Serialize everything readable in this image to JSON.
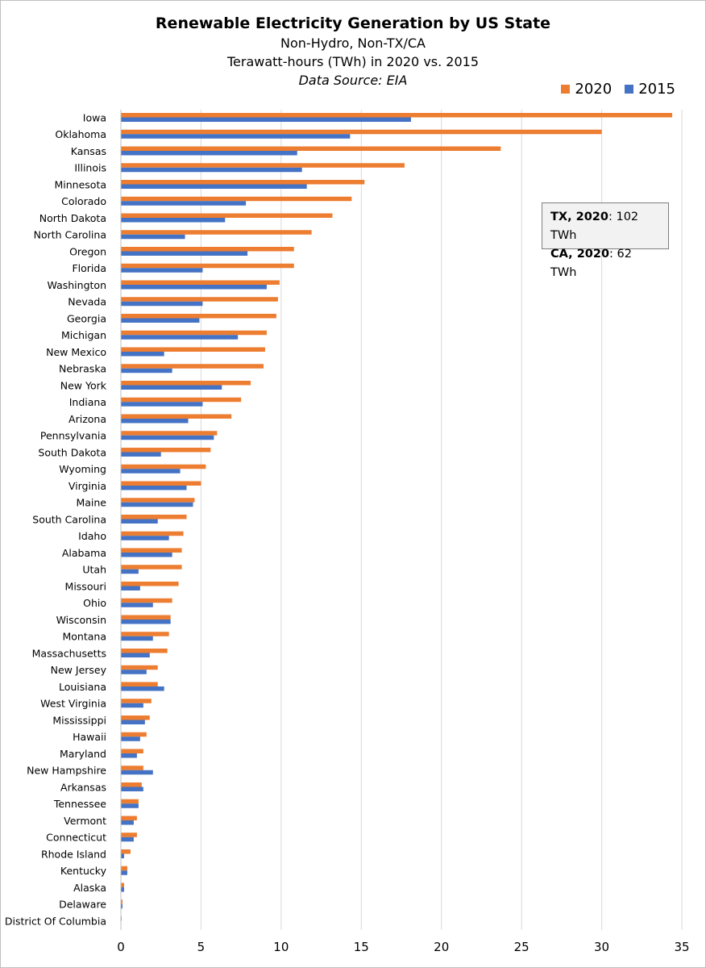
{
  "chart_data": {
    "type": "bar",
    "orientation": "horizontal",
    "title": "Renewable Electricity Generation by US State",
    "subtitle_lines": [
      "Non-Hydro, Non-TX/CA",
      "Terawatt-hours (TWh) in 2020 vs. 2015"
    ],
    "source": "Data Source: EIA",
    "xlim": [
      0,
      35
    ],
    "x_ticks": [
      0,
      5,
      10,
      15,
      20,
      25,
      30,
      35
    ],
    "grid": true,
    "legend_position": "top-right",
    "series_colors": {
      "2020": "#ED7D31",
      "2015": "#4472C4"
    },
    "categories": [
      "Iowa",
      "Oklahoma",
      "Kansas",
      "Illinois",
      "Minnesota",
      "Colorado",
      "North Dakota",
      "North Carolina",
      "Oregon",
      "Florida",
      "Washington",
      "Nevada",
      "Georgia",
      "Michigan",
      "New Mexico",
      "Nebraska",
      "New York",
      "Indiana",
      "Arizona",
      "Pennsylvania",
      "South Dakota",
      "Wyoming",
      "Virginia",
      "Maine",
      "South Carolina",
      "Idaho",
      "Alabama",
      "Utah",
      "Missouri",
      "Ohio",
      "Wisconsin",
      "Montana",
      "Massachusetts",
      "New Jersey",
      "Louisiana",
      "West Virginia",
      "Mississippi",
      "Hawaii",
      "Maryland",
      "New Hampshire",
      "Arkansas",
      "Tennessee",
      "Vermont",
      "Connecticut",
      "Rhode Island",
      "Kentucky",
      "Alaska",
      "Delaware",
      "District Of Columbia"
    ],
    "series": [
      {
        "name": "2020",
        "values": [
          34.4,
          30.0,
          23.7,
          17.7,
          15.2,
          14.4,
          13.2,
          11.9,
          10.8,
          10.8,
          9.9,
          9.8,
          9.7,
          9.1,
          9.0,
          8.9,
          8.1,
          7.5,
          6.9,
          6.0,
          5.6,
          5.3,
          5.0,
          4.6,
          4.1,
          3.9,
          3.8,
          3.8,
          3.6,
          3.2,
          3.1,
          3.0,
          2.9,
          2.3,
          2.3,
          1.9,
          1.8,
          1.6,
          1.4,
          1.4,
          1.3,
          1.1,
          1.0,
          1.0,
          0.6,
          0.4,
          0.2,
          0.1,
          0.05
        ]
      },
      {
        "name": "2015",
        "values": [
          18.1,
          14.3,
          11.0,
          11.3,
          11.6,
          7.8,
          6.5,
          4.0,
          7.9,
          5.1,
          9.1,
          5.1,
          4.9,
          7.3,
          2.7,
          3.2,
          6.3,
          5.1,
          4.2,
          5.8,
          2.5,
          3.7,
          4.1,
          4.5,
          2.3,
          3.0,
          3.2,
          1.1,
          1.2,
          2.0,
          3.1,
          2.0,
          1.8,
          1.6,
          2.7,
          1.4,
          1.5,
          1.2,
          1.0,
          2.0,
          1.4,
          1.1,
          0.8,
          0.8,
          0.2,
          0.4,
          0.2,
          0.1,
          0.02
        ]
      }
    ],
    "annotation": {
      "lines": [
        {
          "bold": "TX, 2020",
          "rest": ": 102 TWh"
        },
        {
          "bold": "CA, 2020",
          "rest": ": 62 TWh"
        }
      ]
    }
  }
}
